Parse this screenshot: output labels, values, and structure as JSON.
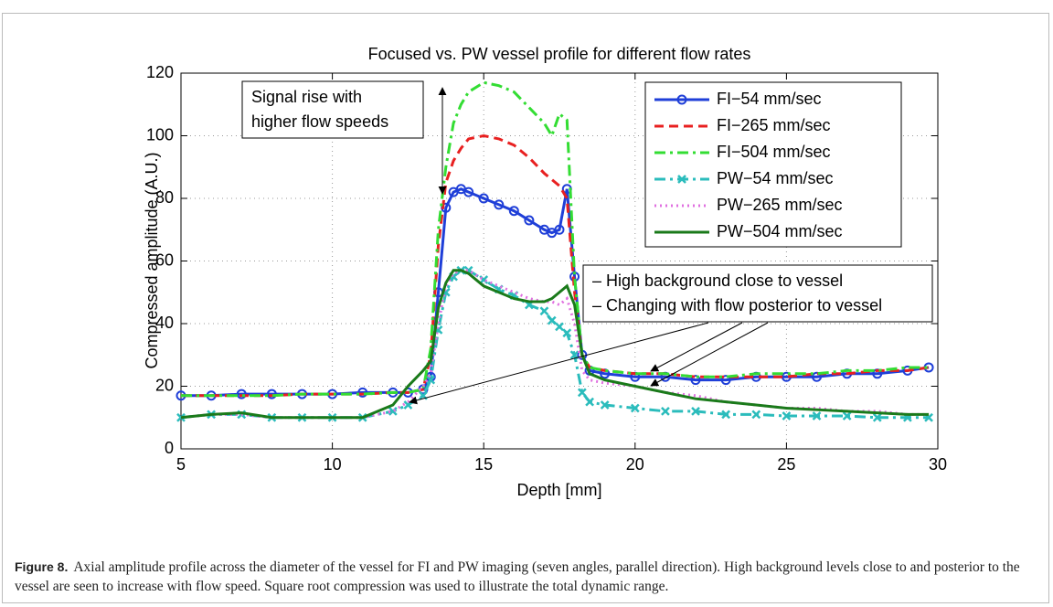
{
  "chart_data": {
    "type": "line",
    "title": "Focused vs. PW vessel profile for different flow rates",
    "xlabel": "Depth [mm]",
    "ylabel": "Compressed amplitude (A.U.)",
    "x": [
      5,
      6,
      7,
      8,
      9,
      10,
      11,
      12,
      12.5,
      13,
      13.25,
      13.5,
      13.75,
      14,
      14.25,
      14.5,
      15,
      15.5,
      16,
      16.5,
      17,
      17.25,
      17.5,
      17.75,
      18,
      18.25,
      18.5,
      19,
      20,
      21,
      22,
      23,
      24,
      25,
      26,
      27,
      28,
      29,
      29.7
    ],
    "series": [
      {
        "name": "FI−54 mm/sec",
        "color": "#1f3fd8",
        "linestyle": "-",
        "marker": "o",
        "values": [
          17,
          17,
          17.5,
          17.5,
          17.5,
          17.5,
          18,
          18,
          18,
          19,
          23,
          50,
          77,
          82,
          83,
          82,
          80,
          78,
          76,
          73,
          70,
          69,
          70,
          83,
          55,
          30,
          25,
          24,
          23,
          23,
          22,
          22,
          23,
          23,
          23,
          24,
          24,
          25,
          26
        ]
      },
      {
        "name": "FI−265 mm/sec",
        "color": "#e82020",
        "linestyle": "--",
        "values": [
          17,
          17,
          17,
          17,
          17.5,
          17.5,
          17.5,
          18,
          18,
          19,
          30,
          65,
          85,
          92,
          96,
          99,
          100,
          99,
          97,
          93,
          88,
          86,
          84,
          80,
          50,
          30,
          26,
          25,
          24,
          24,
          23,
          23,
          23,
          23,
          24,
          24,
          25,
          25,
          26
        ]
      },
      {
        "name": "FI−504 mm/sec",
        "color": "#33dd33",
        "linestyle": "-.",
        "values": [
          17,
          17,
          17,
          17,
          17.5,
          17.5,
          17.5,
          18,
          18,
          19,
          32,
          70,
          90,
          104,
          110,
          114,
          117,
          116,
          114,
          109,
          104,
          100,
          107,
          105,
          55,
          30,
          26,
          25,
          24,
          24,
          23,
          23,
          24,
          24,
          24,
          25,
          25,
          26,
          26
        ]
      },
      {
        "name": "PW−54 mm/sec",
        "color": "#2bbcbc",
        "linestyle": "-.",
        "marker": "x",
        "values": [
          10,
          11,
          11,
          10,
          10,
          10,
          10,
          12,
          14,
          17,
          22,
          38,
          50,
          55,
          57,
          57,
          54,
          51,
          49,
          46,
          44,
          41,
          39,
          37,
          30,
          18,
          15,
          14,
          13,
          12,
          12,
          11,
          11,
          10.5,
          10.5,
          10.5,
          10,
          10,
          10
        ]
      },
      {
        "name": "PW−265 mm/sec",
        "color": "#e070e0",
        "linestyle": ":",
        "values": [
          10,
          11,
          11,
          10,
          10,
          10,
          10,
          12,
          15,
          20,
          24,
          40,
          52,
          56,
          57,
          57,
          54,
          52,
          50,
          48,
          47,
          47,
          46,
          48,
          40,
          25,
          22,
          21,
          20,
          18,
          17,
          15,
          14,
          13,
          13,
          12,
          12,
          11,
          11
        ]
      },
      {
        "name": "PW−504 mm/sec",
        "color": "#1a7a1a",
        "linestyle": "-",
        "values": [
          10,
          11,
          11.5,
          10,
          10,
          10,
          10,
          14,
          20,
          25,
          28,
          45,
          53,
          57,
          57,
          56,
          52,
          50,
          48,
          47,
          47,
          48,
          50,
          52,
          46,
          30,
          24,
          22,
          20,
          18,
          16,
          15,
          14,
          13,
          12.5,
          12,
          11.5,
          11,
          11
        ]
      }
    ],
    "xlim": [
      5,
      30
    ],
    "xticks": [
      5,
      10,
      15,
      20,
      25,
      30
    ],
    "ylim": [
      0,
      120
    ],
    "yticks": [
      0,
      20,
      40,
      60,
      80,
      100,
      120
    ],
    "grid": true,
    "legend": "upper right",
    "annotations": [
      {
        "lines": [
          "Signal rise with",
          "higher flow speeds"
        ]
      },
      {
        "lines": [
          "– High background close to vessel",
          "– Changing with flow posterior to vessel"
        ]
      }
    ]
  },
  "caption": {
    "label": "Figure 8.",
    "text": "Axial amplitude profile across the diameter of the vessel for FI and PW imaging (seven angles, parallel direction). High background levels close to and posterior to the vessel are seen to increase with flow speed. Square root compression was used to illustrate the total dynamic range."
  }
}
